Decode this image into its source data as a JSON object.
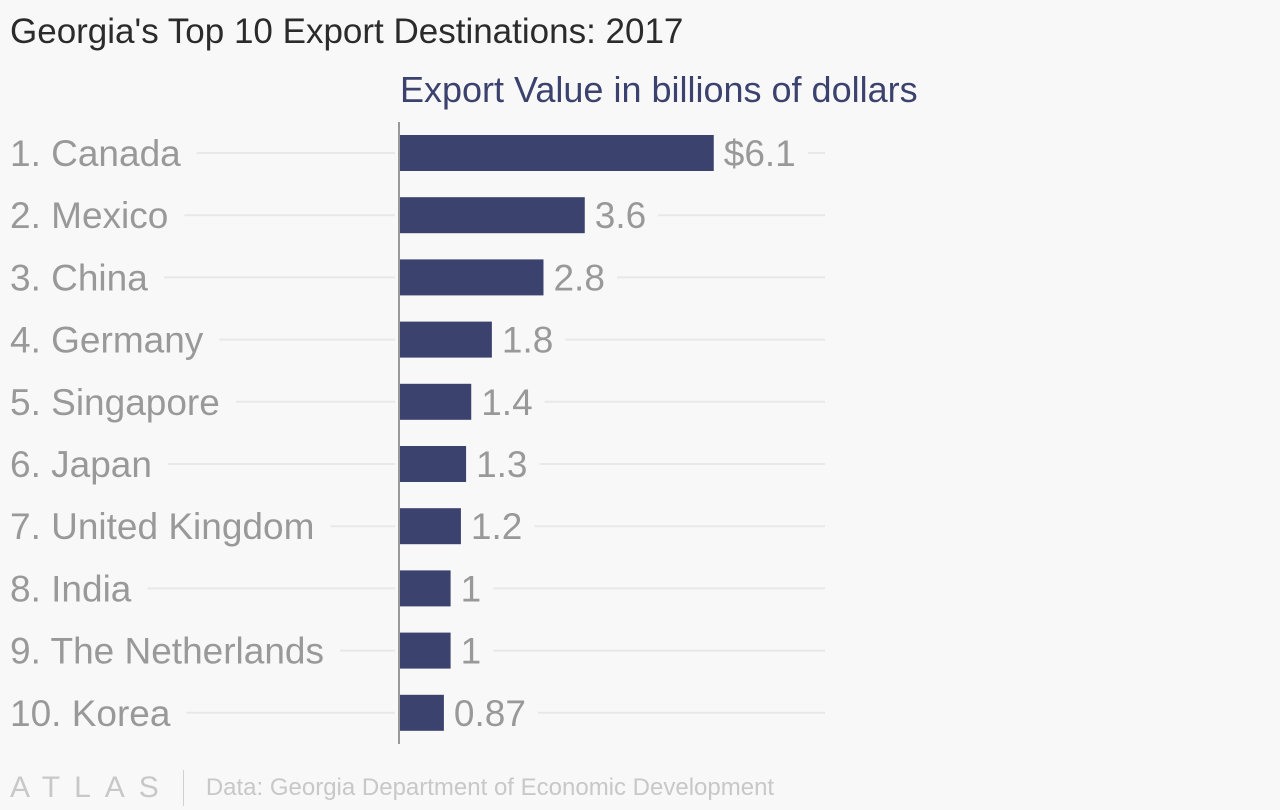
{
  "chart_data": {
    "type": "bar",
    "orientation": "horizontal",
    "title": "Georgia's Top 10 Export Destinations: 2017",
    "subtitle": "Export Value in billions of dollars",
    "categories": [
      "1. Canada",
      "2. Mexico",
      "3. China",
      "4. Germany",
      "5. Singapore",
      "6. Japan",
      "7. United Kingdom",
      "8. India",
      "9. The Netherlands",
      "10. Korea"
    ],
    "values": [
      6.1,
      3.6,
      2.8,
      1.8,
      1.4,
      1.3,
      1.2,
      1,
      1,
      0.87
    ],
    "data_labels": [
      "$6.1",
      "3.6",
      "2.8",
      "1.8",
      "1.4",
      "1.3",
      "1.2",
      "1",
      "1",
      "0.87"
    ],
    "bar_color": "#3b426e",
    "grid": true
  },
  "footer": {
    "logo": "ATLAS",
    "source": "Data: Georgia Department of Economic Development"
  }
}
